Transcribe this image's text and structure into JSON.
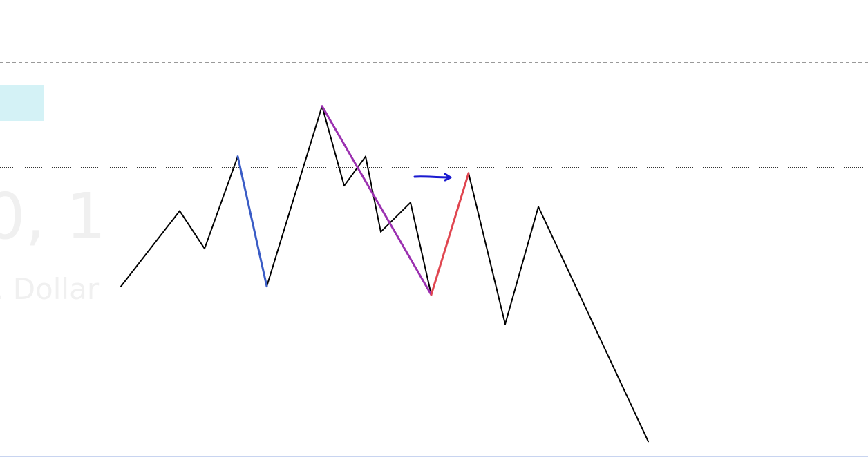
{
  "watermark": {
    "pair_text": "0, 1",
    "description_text": ". Dollar"
  },
  "colors": {
    "background": "#ffffff",
    "price_line": "#000000",
    "blue_segment": "#3a5cc6",
    "purple_segment": "#9b30b0",
    "red_segment": "#e0454f",
    "arrow": "#1a1ad0",
    "cyan_block": "#d4f2f6",
    "dashed_level": "#999999",
    "dotted_level": "#333333",
    "short_dashed_level": "#5555aa",
    "bottom_border": "#c8d4f0"
  },
  "chart_data": {
    "type": "line",
    "title": "",
    "xlabel": "",
    "ylabel": "",
    "x": [
      0,
      1,
      2,
      3,
      4,
      5,
      6,
      7,
      8,
      9,
      10,
      11,
      12,
      13,
      14,
      15
    ],
    "ylim": [
      0,
      100
    ],
    "grid": false,
    "series": [
      {
        "values": [
          47,
          65,
          56,
          78,
          47,
          90,
          71,
          78,
          60,
          67,
          45,
          74,
          38,
          66,
          10,
          10
        ]
      }
    ],
    "price_path": [
      [
        0,
        47
      ],
      [
        1,
        65
      ],
      [
        2,
        56
      ],
      [
        3,
        78
      ],
      [
        4,
        47
      ],
      [
        5,
        90
      ],
      [
        6,
        71
      ],
      [
        7,
        78
      ],
      [
        8,
        60
      ],
      [
        9,
        67
      ],
      [
        10,
        45
      ],
      [
        11,
        74
      ],
      [
        12,
        38
      ],
      [
        13,
        66
      ],
      [
        14,
        10
      ]
    ],
    "overlays": [
      {
        "type": "segment",
        "color_key": "blue_segment",
        "from": [
          3,
          78
        ],
        "to": [
          4,
          47
        ]
      },
      {
        "type": "segment",
        "color_key": "purple_segment",
        "from": [
          5,
          90
        ],
        "to": [
          10,
          45
        ]
      },
      {
        "type": "segment",
        "color_key": "red_segment",
        "from": [
          10,
          45
        ],
        "to": [
          11,
          74
        ]
      }
    ],
    "levels": [
      {
        "kind": "dashed",
        "value": 95
      },
      {
        "kind": "dotted",
        "value": 66
      },
      {
        "kind": "short-dashed",
        "value": 44
      }
    ]
  }
}
